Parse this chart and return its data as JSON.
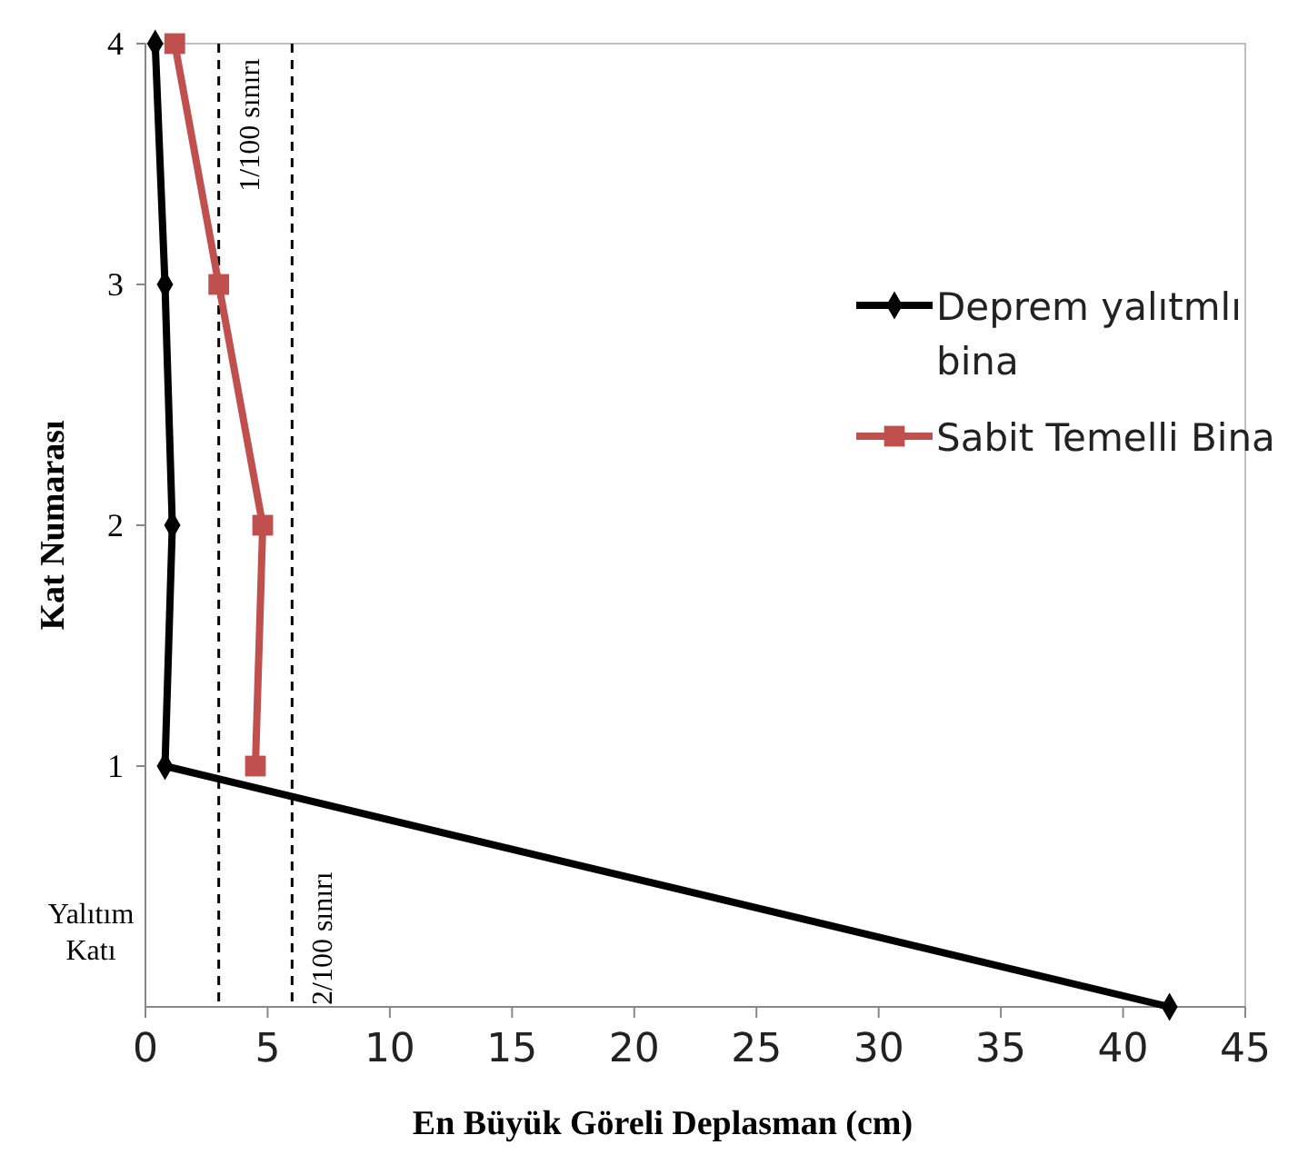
{
  "chart_data": {
    "type": "line",
    "xlabel": "En Büyük Göreli Deplasman (cm)",
    "ylabel": "Kat Numarası",
    "xlim": [
      0,
      45
    ],
    "xticks": [
      0,
      5,
      10,
      15,
      20,
      25,
      30,
      35,
      40,
      45
    ],
    "ylim": [
      0,
      4
    ],
    "yticks": [
      1,
      2,
      3,
      4
    ],
    "series": [
      {
        "name": "Deprem yalıtmlı bina",
        "color": "#000000",
        "marker": "diamond",
        "x": [
          0.4,
          0.8,
          1.1,
          0.8,
          41.9
        ],
        "values": [
          4,
          3,
          2,
          1,
          0
        ]
      },
      {
        "name": "Sabit Temelli Bina",
        "color": "#c0504d",
        "marker": "square",
        "x": [
          1.2,
          3.0,
          4.8,
          4.5
        ],
        "values": [
          4,
          3,
          2,
          1
        ]
      }
    ],
    "ref_lines": [
      {
        "axis": "x",
        "value": 3,
        "label": "1/100 sınırı",
        "color": "#000000",
        "line_style": "dashed"
      },
      {
        "axis": "x",
        "value": 6,
        "label": "2/100 sınırı",
        "color": "#000000",
        "line_style": "dashed"
      }
    ],
    "annotations": [
      "Yalıtım Katı"
    ],
    "grid": false,
    "legend": "right"
  }
}
